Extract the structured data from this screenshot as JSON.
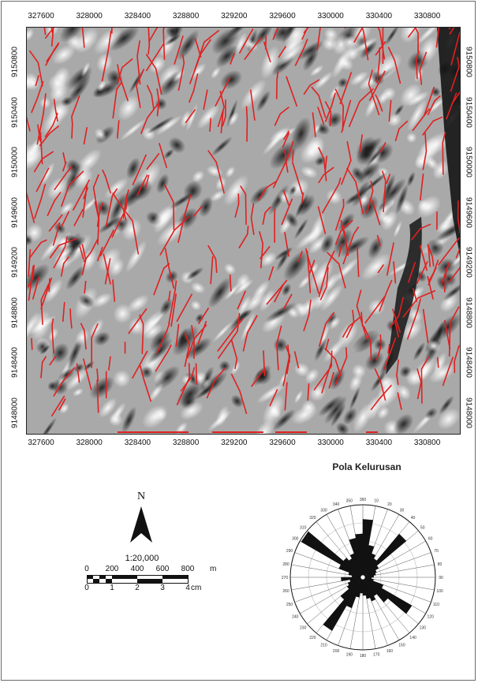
{
  "map": {
    "x_ticks": [
      "327600",
      "328000",
      "328400",
      "328800",
      "329200",
      "329600",
      "330000",
      "330400",
      "330800"
    ],
    "y_ticks": [
      "9150800",
      "9150400",
      "9150000",
      "9149600",
      "9149200",
      "9148800",
      "9148400",
      "9148000"
    ],
    "lineament_color": "#e02020"
  },
  "legend": {
    "north_label": "N",
    "scale_ratio": "1:20,000",
    "scale_m_labels": [
      "0",
      "200",
      "400",
      "600",
      "800"
    ],
    "scale_m_unit": "m",
    "scale_cm_labels": [
      "0",
      "1",
      "2",
      "3",
      "4"
    ],
    "scale_cm_unit": "cm"
  },
  "rose": {
    "title": "Pola Kelurusan",
    "angle_labels": [
      "10",
      "20",
      "30",
      "40",
      "50",
      "60",
      "70",
      "80",
      "90",
      "100",
      "110",
      "120",
      "130",
      "140",
      "150",
      "160",
      "170",
      "180",
      "190",
      "200",
      "210",
      "220",
      "230",
      "240",
      "250",
      "260",
      "270",
      "280",
      "290",
      "300",
      "310",
      "320",
      "330",
      "340",
      "350",
      "360"
    ],
    "petals": [
      {
        "azimuth": 5,
        "length": 0.8
      },
      {
        "azimuth": 15,
        "length": 0.45
      },
      {
        "azimuth": 25,
        "length": 0.35
      },
      {
        "azimuth": 35,
        "length": 0.3
      },
      {
        "azimuth": 45,
        "length": 0.78
      },
      {
        "azimuth": 55,
        "length": 0.25
      },
      {
        "azimuth": 65,
        "length": 0.2
      },
      {
        "azimuth": 75,
        "length": 0.18
      },
      {
        "azimuth": 85,
        "length": 0.15
      },
      {
        "azimuth": 95,
        "length": 0.12
      },
      {
        "azimuth": 105,
        "length": 0.15
      },
      {
        "azimuth": 115,
        "length": 0.3
      },
      {
        "azimuth": 125,
        "length": 0.78
      },
      {
        "azimuth": 135,
        "length": 0.45
      },
      {
        "azimuth": 145,
        "length": 0.3
      },
      {
        "azimuth": 155,
        "length": 0.35
      },
      {
        "azimuth": 165,
        "length": 0.3
      },
      {
        "azimuth": 175,
        "length": 0.25
      },
      {
        "azimuth": 185,
        "length": 0.22
      },
      {
        "azimuth": 195,
        "length": 0.28
      },
      {
        "azimuth": 205,
        "length": 0.45
      },
      {
        "azimuth": 215,
        "length": 0.85
      },
      {
        "azimuth": 225,
        "length": 0.4
      },
      {
        "azimuth": 235,
        "length": 0.25
      },
      {
        "azimuth": 245,
        "length": 0.22
      },
      {
        "azimuth": 255,
        "length": 0.18
      },
      {
        "azimuth": 265,
        "length": 0.3
      },
      {
        "azimuth": 275,
        "length": 0.15
      },
      {
        "azimuth": 285,
        "length": 0.2
      },
      {
        "azimuth": 295,
        "length": 0.35
      },
      {
        "azimuth": 305,
        "length": 0.98
      },
      {
        "azimuth": 315,
        "length": 0.35
      },
      {
        "azimuth": 325,
        "length": 0.3
      },
      {
        "azimuth": 335,
        "length": 0.35
      },
      {
        "azimuth": 345,
        "length": 0.55
      },
      {
        "azimuth": 355,
        "length": 0.6
      }
    ]
  }
}
